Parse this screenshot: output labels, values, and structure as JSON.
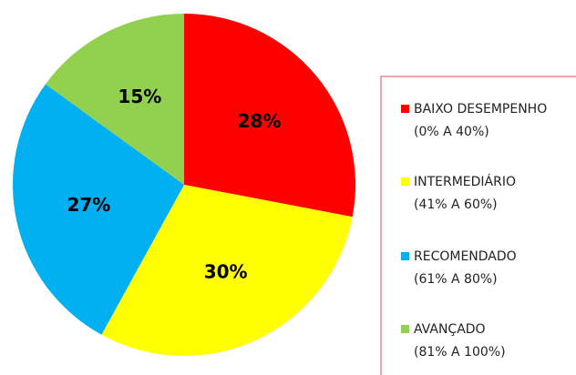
{
  "chart_data": {
    "type": "pie",
    "categories": [
      "BAIXO DESEMPENHO",
      "INTERMEDIÁRIO",
      "RECOMENDADO",
      "AVANÇADO"
    ],
    "ranges": [
      "(0% A 40%)",
      "(41% A 60%)",
      "(61% A 80%)",
      "(81% A 100%)"
    ],
    "values": [
      28,
      30,
      27,
      15
    ],
    "value_labels": [
      "28%",
      "30%",
      "27%",
      "15%"
    ],
    "colors": [
      "#ff0000",
      "#ffff00",
      "#00b0f0",
      "#92d050"
    ],
    "legend": "right"
  }
}
